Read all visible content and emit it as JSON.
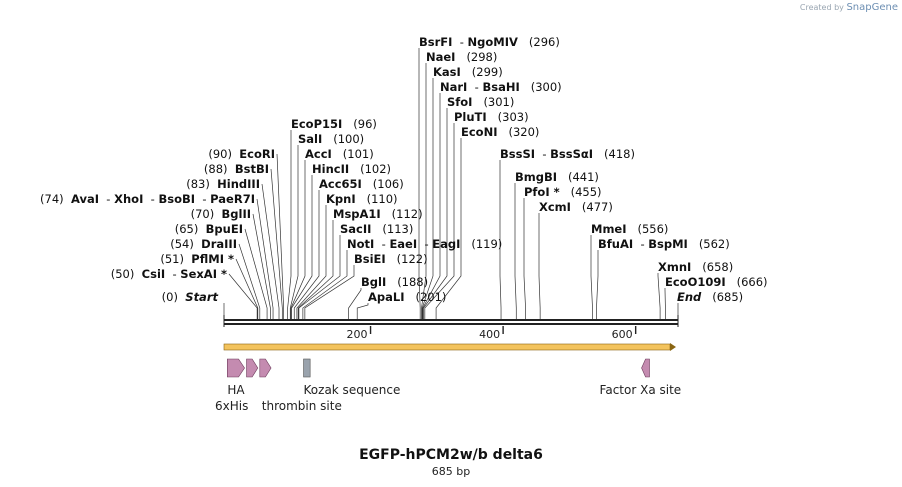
{
  "credit": {
    "prefix": "Created by",
    "brand": "SnapGene"
  },
  "map": {
    "title": "EGFP-hPCM2w/b delta6",
    "length_label": "685 bp",
    "total_bp": 685,
    "scale_start_bp": 1,
    "ticks": [
      {
        "bp": 200,
        "label": "200"
      },
      {
        "bp": 400,
        "label": "400"
      },
      {
        "bp": 600,
        "label": "600"
      }
    ],
    "colors": {
      "backbone": "#222222",
      "orf_fill": "#f3c35d",
      "orf_edge": "#8a6512",
      "feature_pink": "#c48bb0",
      "feature_gray": "#9aa3ad",
      "leader": "#333333"
    }
  },
  "sites_left": [
    {
      "names": [
        "Start"
      ],
      "pos": "(0)",
      "bp": 0,
      "italic": true
    },
    {
      "names": [
        "CsiI",
        "SexAI *"
      ],
      "pos": "(50)",
      "bp": 50
    },
    {
      "names": [
        "PflMI *"
      ],
      "pos": "(51)",
      "bp": 51
    },
    {
      "names": [
        "DraIII"
      ],
      "pos": "(54)",
      "bp": 54
    },
    {
      "names": [
        "BpuEI"
      ],
      "pos": "(65)",
      "bp": 65
    },
    {
      "names": [
        "BglII"
      ],
      "pos": "(70)",
      "bp": 70
    },
    {
      "names": [
        "AvaI",
        "XhoI",
        "BsoBI",
        "PaeR7I"
      ],
      "pos": "(74)",
      "bp": 74
    },
    {
      "names": [
        "HindIII"
      ],
      "pos": "(83)",
      "bp": 83
    },
    {
      "names": [
        "BstBI"
      ],
      "pos": "(88)",
      "bp": 88
    },
    {
      "names": [
        "EcoRI"
      ],
      "pos": "(90)",
      "bp": 90
    }
  ],
  "sites_right": [
    {
      "names": [
        "BglI"
      ],
      "pos": "(188)",
      "bp": 188
    },
    {
      "names": [
        "ApaLI"
      ],
      "pos": "(201)",
      "bp": 201
    },
    {
      "names": [
        "BsiEI"
      ],
      "pos": "(122)",
      "bp": 122
    },
    {
      "names": [
        "NotI",
        "EaeI",
        "EagI"
      ],
      "pos": "(119)",
      "bp": 119
    },
    {
      "names": [
        "SacII"
      ],
      "pos": "(113)",
      "bp": 113
    },
    {
      "names": [
        "MspA1I"
      ],
      "pos": "(112)",
      "bp": 112
    },
    {
      "names": [
        "KpnI"
      ],
      "pos": "(110)",
      "bp": 110
    },
    {
      "names": [
        "Acc65I"
      ],
      "pos": "(106)",
      "bp": 106
    },
    {
      "names": [
        "HincII"
      ],
      "pos": "(102)",
      "bp": 102
    },
    {
      "names": [
        "AccI"
      ],
      "pos": "(101)",
      "bp": 101
    },
    {
      "names": [
        "SalI"
      ],
      "pos": "(100)",
      "bp": 100
    },
    {
      "names": [
        "EcoP15I"
      ],
      "pos": "(96)",
      "bp": 96
    },
    {
      "names": [
        "EcoNI"
      ],
      "pos": "(320)",
      "bp": 320
    },
    {
      "names": [
        "PluTI"
      ],
      "pos": "(303)",
      "bp": 303
    },
    {
      "names": [
        "SfoI"
      ],
      "pos": "(301)",
      "bp": 301
    },
    {
      "names": [
        "NarI",
        "BsaHI"
      ],
      "pos": "(300)",
      "bp": 300
    },
    {
      "names": [
        "KasI"
      ],
      "pos": "(299)",
      "bp": 299
    },
    {
      "names": [
        "NaeI"
      ],
      "pos": "(298)",
      "bp": 298
    },
    {
      "names": [
        "BsrFI",
        "NgoMIV"
      ],
      "pos": "(296)",
      "bp": 296
    },
    {
      "names": [
        "BssSI",
        "BssSαI"
      ],
      "pos": "(418)",
      "bp": 418
    },
    {
      "names": [
        "BmgBI"
      ],
      "pos": "(441)",
      "bp": 441
    },
    {
      "names": [
        "PfoI *"
      ],
      "pos": "(455)",
      "bp": 455
    },
    {
      "names": [
        "XcmI"
      ],
      "pos": "(477)",
      "bp": 477
    },
    {
      "names": [
        "MmeI"
      ],
      "pos": "(556)",
      "bp": 556
    },
    {
      "names": [
        "BfuAI",
        "BspMI"
      ],
      "pos": "(562)",
      "bp": 562
    },
    {
      "names": [
        "XmnI"
      ],
      "pos": "(658)",
      "bp": 658
    },
    {
      "names": [
        "EcoO109I"
      ],
      "pos": "(666)",
      "bp": 666
    },
    {
      "names": [
        "End"
      ],
      "pos": "(685)",
      "bp": 685,
      "italic": true
    }
  ],
  "features": [
    {
      "name": "HA",
      "shape": "arrow",
      "start_bp": 5,
      "end_bp": 31,
      "color": "pink",
      "label_row": 1
    },
    {
      "name": "6xHis",
      "shape": "arrow",
      "start_bp": 34,
      "end_bp": 51,
      "color": "pink",
      "label_row": 2
    },
    {
      "name": "thrombin site",
      "shape": "arrow",
      "start_bp": 54,
      "end_bp": 71,
      "color": "pink",
      "label_row": 2
    },
    {
      "name": "Kozak sequence",
      "shape": "box",
      "start_bp": 120,
      "end_bp": 130,
      "color": "gray",
      "label_row": 1
    },
    {
      "name": "Factor Xa site",
      "shape": "arrow-left",
      "start_bp": 630,
      "end_bp": 642,
      "color": "pink",
      "label_row": 1
    }
  ],
  "orf": {
    "start_bp": 0,
    "end_bp": 685,
    "direction": "forward"
  }
}
